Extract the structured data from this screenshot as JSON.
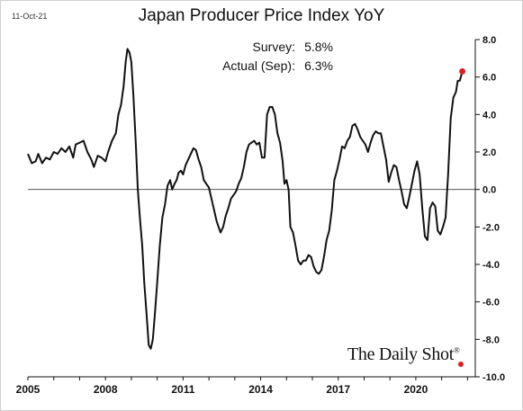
{
  "header": {
    "date": "11-Oct-21",
    "title": "Japan Producer Price Index YoY"
  },
  "annotations": {
    "survey_label": "Survey:",
    "survey_value": "5.8%",
    "actual_label": "Actual (Sep):",
    "actual_value": "6.3%"
  },
  "brand": {
    "name": "The Daily Shot",
    "reg": "®",
    "dot_color": "#e02020"
  },
  "chart_data": {
    "type": "line",
    "title": "Japan Producer Price Index YoY",
    "xlabel": "",
    "ylabel": "",
    "xlim": [
      2005.0,
      2022.3
    ],
    "ylim": [
      -10.0,
      8.0
    ],
    "x_ticks": [
      2005,
      2008,
      2011,
      2014,
      2017,
      2020
    ],
    "x_tick_labels": [
      "2005",
      "2008",
      "2011",
      "2014",
      "2017",
      "2020"
    ],
    "y_ticks": [
      8,
      6,
      4,
      2,
      0,
      -2,
      -4,
      -6,
      -8,
      -10
    ],
    "y_tick_labels": [
      "8.0",
      "6.0",
      "4.0",
      "2.0",
      "0.0",
      "-2.0",
      "-4.0",
      "-6.0",
      "-8.0",
      "-10.0"
    ],
    "grid": false,
    "zero_line": true,
    "line_color": "#111111",
    "marker_color": "#e02020",
    "series": [
      {
        "values": [
          [
            2005.0,
            1.9
          ],
          [
            2005.15,
            1.4
          ],
          [
            2005.3,
            1.5
          ],
          [
            2005.4,
            1.9
          ],
          [
            2005.55,
            1.4
          ],
          [
            2005.7,
            1.7
          ],
          [
            2005.85,
            1.6
          ],
          [
            2006.0,
            2.0
          ],
          [
            2006.15,
            1.9
          ],
          [
            2006.3,
            2.2
          ],
          [
            2006.45,
            2.0
          ],
          [
            2006.6,
            2.3
          ],
          [
            2006.75,
            1.7
          ],
          [
            2006.85,
            2.4
          ],
          [
            2007.0,
            2.5
          ],
          [
            2007.15,
            2.6
          ],
          [
            2007.3,
            2.0
          ],
          [
            2007.45,
            1.6
          ],
          [
            2007.55,
            1.2
          ],
          [
            2007.7,
            1.8
          ],
          [
            2007.85,
            1.7
          ],
          [
            2008.0,
            1.5
          ],
          [
            2008.1,
            2.0
          ],
          [
            2008.25,
            2.6
          ],
          [
            2008.4,
            3.0
          ],
          [
            2008.5,
            4.0
          ],
          [
            2008.6,
            4.5
          ],
          [
            2008.7,
            5.5
          ],
          [
            2008.78,
            6.8
          ],
          [
            2008.85,
            7.5
          ],
          [
            2008.93,
            7.3
          ],
          [
            2009.0,
            6.8
          ],
          [
            2009.08,
            5.0
          ],
          [
            2009.17,
            2.5
          ],
          [
            2009.25,
            0.0
          ],
          [
            2009.33,
            -1.5
          ],
          [
            2009.42,
            -3.0
          ],
          [
            2009.5,
            -5.0
          ],
          [
            2009.58,
            -6.5
          ],
          [
            2009.67,
            -8.3
          ],
          [
            2009.75,
            -8.5
          ],
          [
            2009.83,
            -8.0
          ],
          [
            2009.92,
            -6.5
          ],
          [
            2010.0,
            -5.0
          ],
          [
            2010.1,
            -3.0
          ],
          [
            2010.2,
            -1.5
          ],
          [
            2010.3,
            -0.8
          ],
          [
            2010.4,
            0.2
          ],
          [
            2010.5,
            0.5
          ],
          [
            2010.58,
            0.0
          ],
          [
            2010.67,
            0.3
          ],
          [
            2010.75,
            0.5
          ],
          [
            2010.83,
            0.9
          ],
          [
            2010.92,
            1.0
          ],
          [
            2011.0,
            0.8
          ],
          [
            2011.1,
            1.3
          ],
          [
            2011.2,
            1.6
          ],
          [
            2011.3,
            1.9
          ],
          [
            2011.4,
            2.2
          ],
          [
            2011.5,
            2.1
          ],
          [
            2011.6,
            1.6
          ],
          [
            2011.7,
            1.2
          ],
          [
            2011.8,
            0.5
          ],
          [
            2011.9,
            0.3
          ],
          [
            2012.0,
            0.1
          ],
          [
            2012.15,
            -0.8
          ],
          [
            2012.3,
            -1.7
          ],
          [
            2012.45,
            -2.3
          ],
          [
            2012.55,
            -2.0
          ],
          [
            2012.65,
            -1.4
          ],
          [
            2012.75,
            -1.0
          ],
          [
            2012.85,
            -0.5
          ],
          [
            2012.95,
            -0.3
          ],
          [
            2013.05,
            -0.1
          ],
          [
            2013.15,
            0.3
          ],
          [
            2013.25,
            0.6
          ],
          [
            2013.35,
            1.2
          ],
          [
            2013.45,
            2.0
          ],
          [
            2013.55,
            2.4
          ],
          [
            2013.65,
            2.5
          ],
          [
            2013.75,
            2.6
          ],
          [
            2013.85,
            2.4
          ],
          [
            2013.95,
            2.5
          ],
          [
            2014.05,
            1.7
          ],
          [
            2014.15,
            1.7
          ],
          [
            2014.25,
            4.0
          ],
          [
            2014.35,
            4.4
          ],
          [
            2014.45,
            4.4
          ],
          [
            2014.55,
            4.0
          ],
          [
            2014.65,
            3.0
          ],
          [
            2014.75,
            2.5
          ],
          [
            2014.85,
            1.5
          ],
          [
            2014.92,
            0.3
          ],
          [
            2015.0,
            0.5
          ],
          [
            2015.08,
            0.0
          ],
          [
            2015.15,
            -2.0
          ],
          [
            2015.25,
            -2.3
          ],
          [
            2015.35,
            -3.0
          ],
          [
            2015.45,
            -3.8
          ],
          [
            2015.55,
            -4.0
          ],
          [
            2015.65,
            -3.8
          ],
          [
            2015.75,
            -3.8
          ],
          [
            2015.85,
            -3.5
          ],
          [
            2015.95,
            -3.6
          ],
          [
            2016.05,
            -4.1
          ],
          [
            2016.15,
            -4.4
          ],
          [
            2016.25,
            -4.5
          ],
          [
            2016.35,
            -4.3
          ],
          [
            2016.45,
            -3.6
          ],
          [
            2016.55,
            -2.7
          ],
          [
            2016.65,
            -2.2
          ],
          [
            2016.75,
            -1.1
          ],
          [
            2016.85,
            0.5
          ],
          [
            2016.95,
            1.0
          ],
          [
            2017.05,
            1.6
          ],
          [
            2017.15,
            2.3
          ],
          [
            2017.25,
            2.2
          ],
          [
            2017.35,
            2.6
          ],
          [
            2017.45,
            2.8
          ],
          [
            2017.55,
            3.4
          ],
          [
            2017.65,
            3.5
          ],
          [
            2017.75,
            3.2
          ],
          [
            2017.85,
            2.8
          ],
          [
            2017.95,
            2.6
          ],
          [
            2018.05,
            2.4
          ],
          [
            2018.15,
            2.0
          ],
          [
            2018.25,
            2.5
          ],
          [
            2018.35,
            2.9
          ],
          [
            2018.45,
            3.1
          ],
          [
            2018.55,
            3.0
          ],
          [
            2018.65,
            3.0
          ],
          [
            2018.75,
            2.3
          ],
          [
            2018.85,
            1.6
          ],
          [
            2018.95,
            0.4
          ],
          [
            2019.05,
            0.9
          ],
          [
            2019.15,
            1.3
          ],
          [
            2019.25,
            1.2
          ],
          [
            2019.35,
            0.5
          ],
          [
            2019.45,
            -0.1
          ],
          [
            2019.55,
            -0.8
          ],
          [
            2019.65,
            -1.0
          ],
          [
            2019.75,
            -0.4
          ],
          [
            2019.85,
            0.3
          ],
          [
            2019.95,
            1.0
          ],
          [
            2020.05,
            1.5
          ],
          [
            2020.15,
            0.8
          ],
          [
            2020.25,
            -1.0
          ],
          [
            2020.35,
            -2.5
          ],
          [
            2020.45,
            -2.7
          ],
          [
            2020.55,
            -1.0
          ],
          [
            2020.65,
            -0.7
          ],
          [
            2020.75,
            -0.9
          ],
          [
            2020.85,
            -2.2
          ],
          [
            2020.95,
            -2.4
          ],
          [
            2021.05,
            -2.0
          ],
          [
            2021.15,
            -1.5
          ],
          [
            2021.25,
            0.8
          ],
          [
            2021.35,
            3.8
          ],
          [
            2021.45,
            4.9
          ],
          [
            2021.55,
            5.2
          ],
          [
            2021.62,
            5.8
          ],
          [
            2021.7,
            5.8
          ],
          [
            2021.8,
            6.3
          ]
        ]
      }
    ],
    "last_point": [
      2021.8,
      6.3
    ]
  }
}
